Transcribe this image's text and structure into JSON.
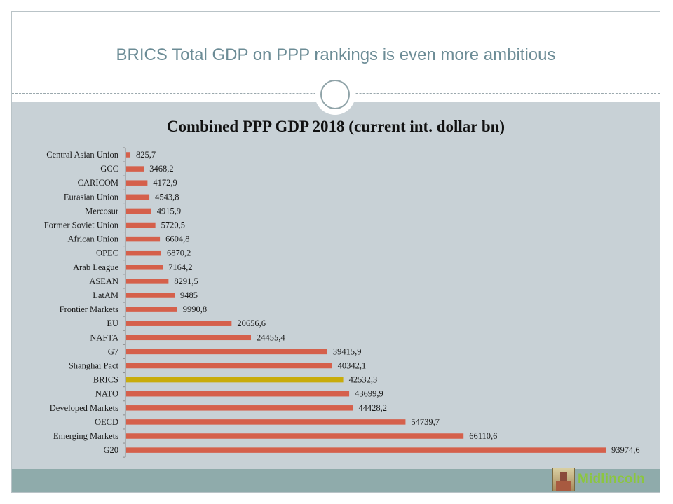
{
  "slide": {
    "title": "BRICS Total GDP on PPP rankings is even more ambitious"
  },
  "logo": {
    "text": "Midlincoln"
  },
  "colors": {
    "bar": "#d5604b",
    "highlight": "#c8ac0b"
  },
  "chart_data": {
    "type": "bar",
    "orientation": "horizontal",
    "title": "Combined PPP GDP 2018 (current int. dollar bn)",
    "xlabel": "",
    "ylabel": "",
    "xlim": [
      0,
      93974.6
    ],
    "grid": false,
    "legend": "none",
    "highlight": "BRICS",
    "categories": [
      "Central Asian Union",
      "GCC",
      "CARICOM",
      "Eurasian Union",
      "Mercosur",
      "Former Soviet Union",
      "African Union",
      "OPEC",
      "Arab League",
      "ASEAN",
      "LatAM",
      "Frontier Markets",
      "EU",
      "NAFTA",
      "G7",
      "Shanghai Pact",
      "BRICS",
      "NATO",
      "Developed Markets",
      "OECD",
      "Emerging Markets",
      "G20"
    ],
    "values": [
      825.7,
      3468.2,
      4172.9,
      4543.8,
      4915.9,
      5720.5,
      6604.8,
      6870.2,
      7164.2,
      8291.5,
      9485,
      9990.8,
      20656.6,
      24455.4,
      39415.9,
      40342.1,
      42532.3,
      43699.9,
      44428.2,
      54739.7,
      66110.6,
      93974.6
    ],
    "labels": [
      "825,7",
      "3468,2",
      "4172,9",
      "4543,8",
      "4915,9",
      "5720,5",
      "6604,8",
      "6870,2",
      "7164,2",
      "8291,5",
      "9485",
      "9990,8",
      "20656,6",
      "24455,4",
      "39415,9",
      "40342,1",
      "42532,3",
      "43699,9",
      "44428,2",
      "54739,7",
      "66110,6",
      "93974,6"
    ]
  }
}
